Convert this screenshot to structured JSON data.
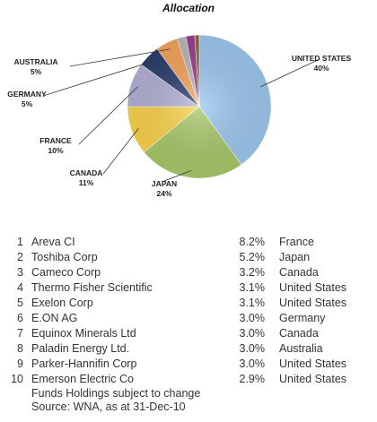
{
  "chart_data": {
    "type": "pie",
    "title": "Allocation",
    "slices": [
      {
        "label": "UNITED STATES",
        "value": 40,
        "value_label": "40%",
        "color": "#9ec8f0"
      },
      {
        "label": "JAPAN",
        "value": 24,
        "value_label": "24%",
        "color": "#a9c96a"
      },
      {
        "label": "CANADA",
        "value": 11,
        "value_label": "11%",
        "color": "#fcd34d"
      },
      {
        "label": "FRANCE",
        "value": 10,
        "value_label": "10%",
        "color": "#b4b2d8"
      },
      {
        "label": "GERMANY",
        "value": 5,
        "value_label": "5%",
        "color": "#2c3f6e"
      },
      {
        "label": "AUSTRALIA",
        "value": 5,
        "value_label": "5%",
        "color": "#f6a45a"
      },
      {
        "label": "",
        "value": 2,
        "value_label": "",
        "color": "#b9b9b9"
      },
      {
        "label": "",
        "value": 2,
        "value_label": "",
        "color": "#9a3f8f"
      },
      {
        "label": "",
        "value": 1,
        "value_label": "",
        "color": "#8a6a3a"
      }
    ]
  },
  "holdings": [
    {
      "rank": "1",
      "name": "Areva CI",
      "weight": "8.2%",
      "country": "France"
    },
    {
      "rank": "2",
      "name": "Toshiba Corp",
      "weight": "5.2%",
      "country": "Japan"
    },
    {
      "rank": "3",
      "name": "Cameco Corp",
      "weight": "3.2%",
      "country": "Canada"
    },
    {
      "rank": "4",
      "name": "Thermo Fisher Scientific",
      "weight": "3.1%",
      "country": "United States"
    },
    {
      "rank": "5",
      "name": "Exelon Corp",
      "weight": "3.1%",
      "country": "United States"
    },
    {
      "rank": "6",
      "name": "E.ON AG",
      "weight": "3.0%",
      "country": "Germany"
    },
    {
      "rank": "7",
      "name": "Equinox Minerals Ltd",
      "weight": "3.0%",
      "country": "Canada"
    },
    {
      "rank": "8",
      "name": "Paladin Energy Ltd.",
      "weight": "3.0%",
      "country": "Australia"
    },
    {
      "rank": "9",
      "name": "Parker-Hannifin Corp",
      "weight": "3.0%",
      "country": "United States"
    },
    {
      "rank": "10",
      "name": "Emerson Electric Co",
      "weight": "2.9%",
      "country": "United States"
    }
  ],
  "notes": {
    "subject_to_change": "Funds Holdings subject to change",
    "source": "Source: WNA, as at 31-Dec-10"
  }
}
